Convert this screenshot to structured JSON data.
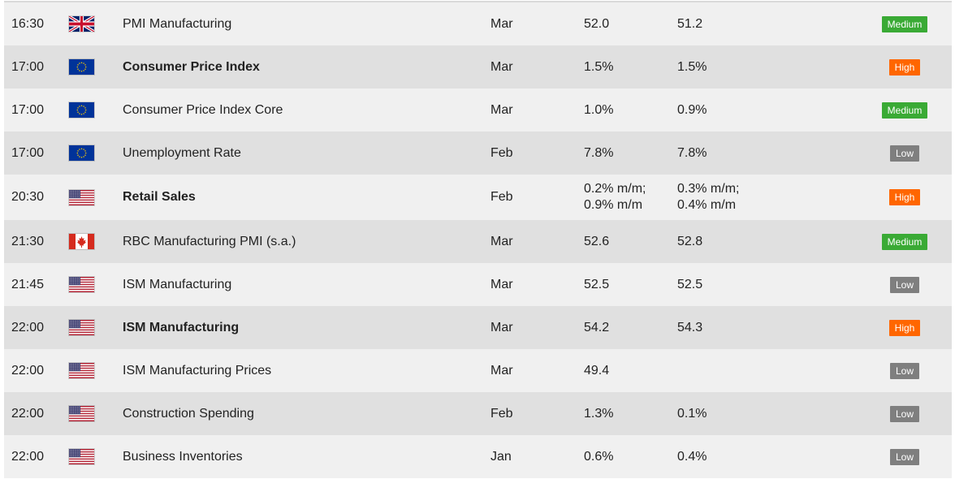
{
  "colors": {
    "row_light": "#f0f0f0",
    "row_dark": "#e0e0e0",
    "impact_medium": "#3aaa35",
    "impact_high": "#ff6600",
    "impact_low": "#7f7f7f"
  },
  "rows": [
    {
      "time": "16:30",
      "flag": "uk-flag-icon",
      "event": "PMI Manufacturing",
      "bold": false,
      "period": "Mar",
      "actual": [
        "52.0"
      ],
      "previous": [
        "51.2"
      ],
      "impact": "Medium"
    },
    {
      "time": "17:00",
      "flag": "eu-flag-icon",
      "event": "Consumer Price Index",
      "bold": true,
      "period": "Mar",
      "actual": [
        "1.5%"
      ],
      "previous": [
        "1.5%"
      ],
      "impact": "High"
    },
    {
      "time": "17:00",
      "flag": "eu-flag-icon",
      "event": "Consumer Price Index Core",
      "bold": false,
      "period": "Mar",
      "actual": [
        "1.0%"
      ],
      "previous": [
        "0.9%"
      ],
      "impact": "Medium"
    },
    {
      "time": "17:00",
      "flag": "eu-flag-icon",
      "event": "Unemployment Rate",
      "bold": false,
      "period": "Feb",
      "actual": [
        "7.8%"
      ],
      "previous": [
        "7.8%"
      ],
      "impact": "Low"
    },
    {
      "time": "20:30",
      "flag": "us-flag-icon",
      "event": "Retail Sales",
      "bold": true,
      "period": "Feb",
      "actual": [
        "0.2% m/m;",
        "0.9% m/m"
      ],
      "previous": [
        "0.3% m/m;",
        "0.4% m/m"
      ],
      "impact": "High"
    },
    {
      "time": "21:30",
      "flag": "ca-flag-icon",
      "event": "RBC Manufacturing PMI (s.a.)",
      "bold": false,
      "period": "Mar",
      "actual": [
        "52.6"
      ],
      "previous": [
        "52.8"
      ],
      "impact": "Medium"
    },
    {
      "time": "21:45",
      "flag": "us-flag-icon",
      "event": "ISM Manufacturing",
      "bold": false,
      "period": "Mar",
      "actual": [
        "52.5"
      ],
      "previous": [
        "52.5"
      ],
      "impact": "Low"
    },
    {
      "time": "22:00",
      "flag": "us-flag-icon",
      "event": "ISM Manufacturing",
      "bold": true,
      "period": "Mar",
      "actual": [
        "54.2"
      ],
      "previous": [
        "54.3"
      ],
      "impact": "High"
    },
    {
      "time": "22:00",
      "flag": "us-flag-icon",
      "event": "ISM Manufacturing Prices",
      "bold": false,
      "period": "Mar",
      "actual": [
        "49.4"
      ],
      "previous": [],
      "impact": "Low"
    },
    {
      "time": "22:00",
      "flag": "us-flag-icon",
      "event": "Construction Spending",
      "bold": false,
      "period": "Feb",
      "actual": [
        "1.3%"
      ],
      "previous": [
        "0.1%"
      ],
      "impact": "Low"
    },
    {
      "time": "22:00",
      "flag": "us-flag-icon",
      "event": "Business Inventories",
      "bold": false,
      "period": "Jan",
      "actual": [
        "0.6%"
      ],
      "previous": [
        "0.4%"
      ],
      "impact": "Low"
    }
  ]
}
